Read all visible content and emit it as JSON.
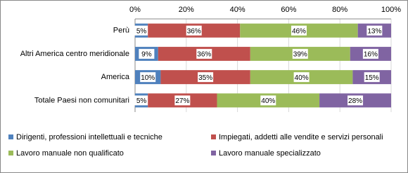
{
  "chart_data": {
    "type": "stacked-barh",
    "categories": [
      "Perù",
      "Altri America centro meridionale",
      "America",
      "Totale Paesi non comunitari"
    ],
    "series": [
      {
        "name": "Dirigenti, professioni intellettuali e tecniche",
        "color": "#4f81bd",
        "values": [
          5,
          9,
          10,
          5
        ],
        "value_labels": [
          "5%",
          "9%",
          "10%",
          "5%"
        ]
      },
      {
        "name": "Impiegati, addetti alle vendite e servizi personali",
        "color": "#c0504d",
        "values": [
          36,
          36,
          35,
          27
        ],
        "value_labels": [
          "36%",
          "36%",
          "35%",
          "27%"
        ]
      },
      {
        "name": "Lavoro manuale non qualificato",
        "color": "#9bbb59",
        "values": [
          46,
          39,
          40,
          40
        ],
        "value_labels": [
          "46%",
          "39%",
          "40%",
          "40%"
        ]
      },
      {
        "name": "Lavoro manuale specializzato",
        "color": "#8064a2",
        "values": [
          13,
          16,
          15,
          28
        ],
        "value_labels": [
          "13%",
          "16%",
          "15%",
          "28%"
        ]
      }
    ],
    "xlim": [
      0,
      100
    ],
    "xticks": [
      {
        "value": 0,
        "label": "0%"
      },
      {
        "value": 20,
        "label": "20%"
      },
      {
        "value": 40,
        "label": "40%"
      },
      {
        "value": 60,
        "label": "60%"
      },
      {
        "value": 80,
        "label": "80%"
      },
      {
        "value": 100,
        "label": "100%"
      }
    ],
    "grid": true
  }
}
